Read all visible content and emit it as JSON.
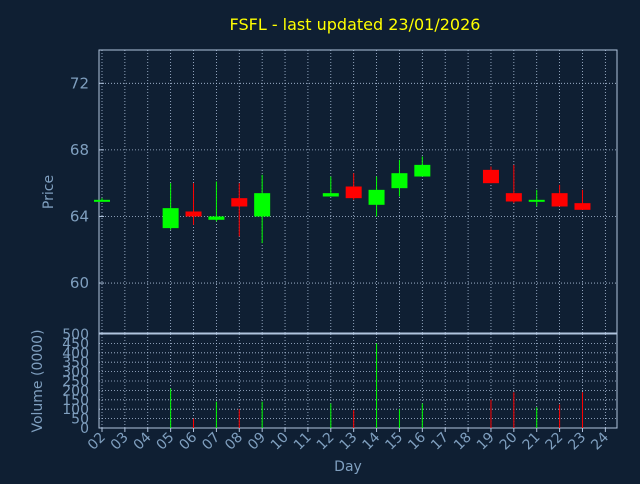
{
  "title": "FSFL - last updated 23/01/2026",
  "colors": {
    "background": "#0f1f33",
    "frame": "#b0c4de",
    "grid": "#b0c4de",
    "text": "#7f9fbf",
    "title": "#ffff00",
    "up": "#00ff00",
    "down": "#ff0000"
  },
  "chart_data": [
    {
      "type": "candlestick",
      "ylabel": "Price",
      "ylim": [
        57,
        74
      ],
      "yticks": [
        60,
        64,
        68,
        72
      ],
      "grid": true,
      "candles": [
        {
          "day": "02",
          "open": 65.0,
          "high": 65.1,
          "low": 64.9,
          "close": 65.0,
          "color": "up"
        },
        {
          "day": "05",
          "open": 63.3,
          "high": 66.0,
          "low": 63.2,
          "close": 64.5,
          "color": "up"
        },
        {
          "day": "06",
          "open": 64.3,
          "high": 66.0,
          "low": 63.5,
          "close": 64.0,
          "color": "down"
        },
        {
          "day": "07",
          "open": 63.8,
          "high": 66.1,
          "low": 63.7,
          "close": 64.0,
          "color": "up"
        },
        {
          "day": "08",
          "open": 65.1,
          "high": 66.0,
          "low": 62.8,
          "close": 64.6,
          "color": "down"
        },
        {
          "day": "09",
          "open": 64.0,
          "high": 66.5,
          "low": 62.4,
          "close": 65.4,
          "color": "up"
        },
        {
          "day": "12",
          "open": 65.2,
          "high": 66.4,
          "low": 65.2,
          "close": 65.4,
          "color": "up"
        },
        {
          "day": "13",
          "open": 65.8,
          "high": 66.6,
          "low": 65.0,
          "close": 65.1,
          "color": "down"
        },
        {
          "day": "14",
          "open": 64.7,
          "high": 66.4,
          "low": 64.0,
          "close": 65.6,
          "color": "up"
        },
        {
          "day": "15",
          "open": 65.7,
          "high": 67.4,
          "low": 65.2,
          "close": 66.6,
          "color": "up"
        },
        {
          "day": "16",
          "open": 66.4,
          "high": 67.6,
          "low": 66.4,
          "close": 67.1,
          "color": "up"
        },
        {
          "day": "19",
          "open": 66.8,
          "high": 67.0,
          "low": 66.0,
          "close": 66.0,
          "color": "down"
        },
        {
          "day": "20",
          "open": 65.4,
          "high": 67.1,
          "low": 64.8,
          "close": 64.9,
          "color": "down"
        },
        {
          "day": "21",
          "open": 64.9,
          "high": 65.6,
          "low": 64.6,
          "close": 65.0,
          "color": "up"
        },
        {
          "day": "22",
          "open": 65.4,
          "high": 65.9,
          "low": 64.6,
          "close": 64.6,
          "color": "down"
        },
        {
          "day": "23",
          "open": 64.8,
          "high": 65.6,
          "low": 64.4,
          "close": 64.4,
          "color": "down"
        }
      ]
    },
    {
      "type": "bar",
      "ylabel": "Volume (0000)",
      "xlabel": "Day",
      "ylim": [
        0,
        500
      ],
      "yticks": [
        0,
        50,
        100,
        150,
        200,
        250,
        300,
        350,
        400,
        450,
        500
      ],
      "grid": true,
      "days": [
        "02",
        "03",
        "04",
        "05",
        "06",
        "07",
        "08",
        "09",
        "10",
        "11",
        "12",
        "13",
        "14",
        "15",
        "16",
        "17",
        "18",
        "19",
        "20",
        "21",
        "22",
        "23",
        "24"
      ],
      "bars": [
        {
          "day": "05",
          "value": 210,
          "color": "up"
        },
        {
          "day": "06",
          "value": 50,
          "color": "down"
        },
        {
          "day": "07",
          "value": 140,
          "color": "up"
        },
        {
          "day": "08",
          "value": 100,
          "color": "down"
        },
        {
          "day": "09",
          "value": 140,
          "color": "up"
        },
        {
          "day": "12",
          "value": 130,
          "color": "up"
        },
        {
          "day": "13",
          "value": 95,
          "color": "down"
        },
        {
          "day": "14",
          "value": 450,
          "color": "up"
        },
        {
          "day": "15",
          "value": 100,
          "color": "up"
        },
        {
          "day": "16",
          "value": 130,
          "color": "up"
        },
        {
          "day": "19",
          "value": 150,
          "color": "down"
        },
        {
          "day": "20",
          "value": 190,
          "color": "down"
        },
        {
          "day": "21",
          "value": 110,
          "color": "up"
        },
        {
          "day": "22",
          "value": 125,
          "color": "down"
        },
        {
          "day": "23",
          "value": 190,
          "color": "down"
        }
      ]
    }
  ]
}
